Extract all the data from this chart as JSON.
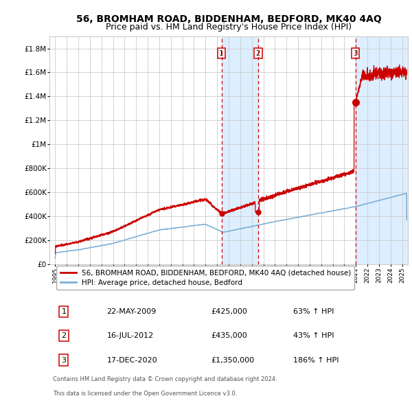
{
  "title": "56, BROMHAM ROAD, BIDDENHAM, BEDFORD, MK40 4AQ",
  "subtitle": "Price paid vs. HM Land Registry's House Price Index (HPI)",
  "legend_line1": "56, BROMHAM ROAD, BIDDENHAM, BEDFORD, MK40 4AQ (detached house)",
  "legend_line2": "HPI: Average price, detached house, Bedford",
  "footer1": "Contains HM Land Registry data © Crown copyright and database right 2024.",
  "footer2": "This data is licensed under the Open Government Licence v3.0.",
  "transactions": [
    {
      "num": 1,
      "date": "22-MAY-2009",
      "price": 425000,
      "pct": "63%",
      "x_year": 2009.38
    },
    {
      "num": 2,
      "date": "16-JUL-2012",
      "price": 435000,
      "pct": "43%",
      "x_year": 2012.54
    },
    {
      "num": 3,
      "date": "17-DEC-2020",
      "price": 1350000,
      "pct": "186%",
      "x_year": 2020.96
    }
  ],
  "ylim": [
    0,
    1900000
  ],
  "xlim_start": 1994.5,
  "xlim_end": 2025.5,
  "background_color": "#ffffff",
  "grid_color": "#cccccc",
  "red_line_color": "#cc0000",
  "blue_line_color": "#7aaed6",
  "shade_color": "#ddeeff",
  "dashed_color": "#cc0000",
  "marker_color": "#cc0000",
  "title_fontsize": 10,
  "subtitle_fontsize": 9,
  "ytick_labels": [
    "£0",
    "£200K",
    "£400K",
    "£600K",
    "£800K",
    "£1M",
    "£1.2M",
    "£1.4M",
    "£1.6M",
    "£1.8M"
  ],
  "ytick_values": [
    0,
    200000,
    400000,
    600000,
    800000,
    1000000,
    1200000,
    1400000,
    1600000,
    1800000
  ]
}
